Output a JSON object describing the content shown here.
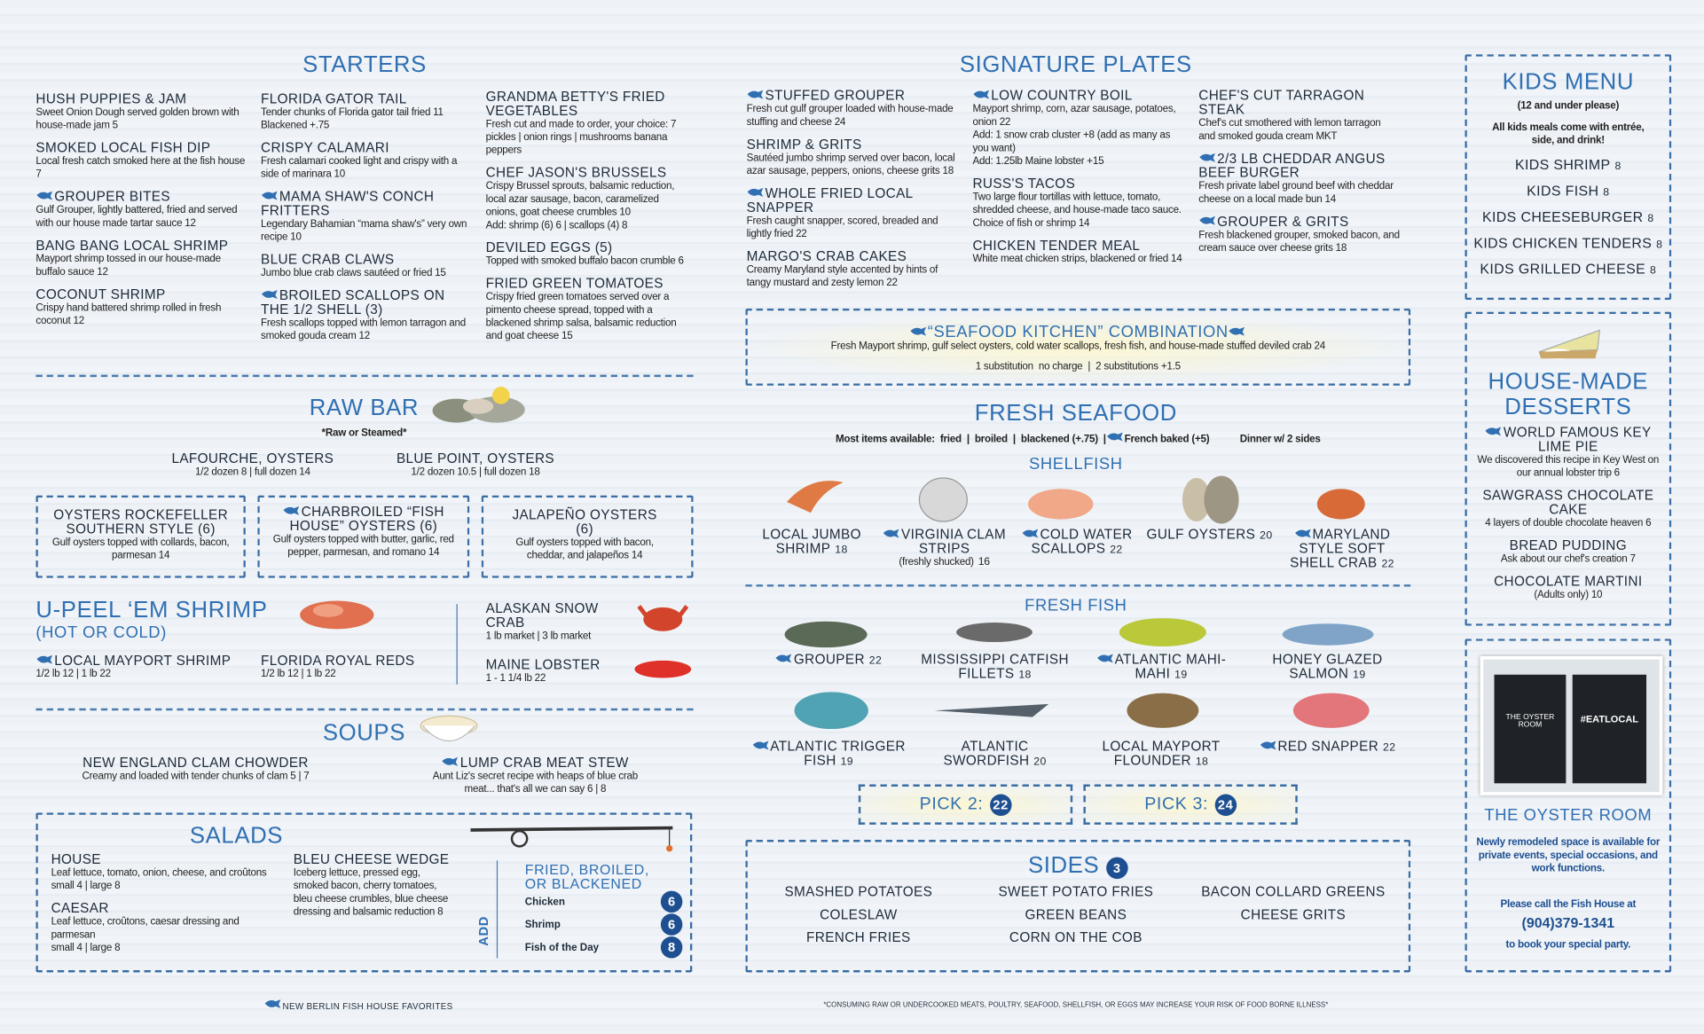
{
  "starters": {
    "title": "STARTERS",
    "columns": [
      [
        {
          "name": "HUSH PUPPIES & JAM",
          "desc": "Sweet Onion Dough served golden brown with house-made jam 5"
        },
        {
          "name": "SMOKED LOCAL FISH DIP",
          "desc": "Local fresh catch smoked here at the fish house 7"
        },
        {
          "name": "GROUPER BITES",
          "favorite": true,
          "desc": "Gulf Grouper, lightly battered, fried and served with our house made tartar sauce 12"
        },
        {
          "name": "BANG BANG LOCAL SHRIMP",
          "desc": "Mayport shrimp tossed in our house-made buffalo sauce 12"
        },
        {
          "name": "COCONUT SHRIMP",
          "desc": "Crispy hand battered shrimp rolled in fresh coconut 12"
        }
      ],
      [
        {
          "name": "FLORIDA GATOR TAIL",
          "desc": "Tender chunks of Florida gator tail fried 11",
          "notes": [
            "Blackened +.75"
          ]
        },
        {
          "name": "CRISPY CALAMARI",
          "desc": "Fresh calamari cooked light and crispy with a side of marinara 10"
        },
        {
          "name": "MAMA SHAW'S CONCH FRITTERS",
          "favorite": true,
          "desc": "Legendary Bahamian “mama shaw's” very own recipe 10"
        },
        {
          "name": "BLUE CRAB CLAWS",
          "desc": "Jumbo blue crab claws sautéed or fried 15"
        },
        {
          "name": "BROILED SCALLOPS ON THE 1/2 SHELL (3)",
          "favorite": true,
          "desc": "Fresh scallops topped with lemon tarragon and smoked gouda cream 12"
        }
      ],
      [
        {
          "name": "GRANDMA BETTY'S FRIED VEGETABLES",
          "desc": "Fresh cut and made to order, your choice: 7",
          "notes": [
            "pickles | onion rings | mushrooms banana peppers"
          ]
        },
        {
          "name": "CHEF JASON'S BRUSSELS",
          "desc": "Crispy Brussel sprouts, balsamic reduction, local azar sausage, bacon, caramelized onions, goat cheese crumbles 10",
          "notes": [
            "Add: shrimp (6) 6 | scallops (4) 8"
          ]
        },
        {
          "name": "DEVILED EGGS (5)",
          "desc": "Topped with smoked buffalo bacon crumble 6"
        },
        {
          "name": "FRIED GREEN TOMATOES",
          "desc": "Crispy fried green tomatoes served over a pimento cheese spread, topped with a blackened shrimp salsa, balsamic reduction and goat cheese 15"
        }
      ]
    ]
  },
  "raw_bar": {
    "title": "RAW BAR",
    "subtitle": "*Raw or Steamed*",
    "oysters": [
      {
        "name": "LAFOURCHE, OYSTERS",
        "desc": "1/2 dozen 8 | full dozen 14"
      },
      {
        "name": "BLUE POINT, OYSTERS",
        "desc": "1/2 dozen 10.5 | full dozen 18"
      }
    ],
    "specials": [
      {
        "name": "OYSTERS ROCKEFELLER SOUTHERN STYLE (6)",
        "desc": "Gulf oysters topped with collards, bacon, parmesan 14"
      },
      {
        "name": "CHARBROILED “FISH HOUSE” OYSTERS (6)",
        "favorite": true,
        "desc": "Gulf oysters topped with butter, garlic, red pepper, parmesan, and romano 14"
      },
      {
        "name": "JALAPEÑO OYSTERS (6)",
        "desc": "Gulf oysters topped with bacon, cheddar, and jalapeños 14"
      }
    ]
  },
  "u_peel": {
    "title": "U-PEEL ‘EM SHRIMP",
    "subtitle": "(HOT OR COLD)",
    "items": [
      {
        "name": "LOCAL MAYPORT SHRIMP",
        "favorite": true,
        "desc": "1/2 lb 12 | 1 lb 22"
      },
      {
        "name": "FLORIDA ROYAL REDS",
        "desc": "1/2 lb 12 | 1 lb 22"
      }
    ],
    "crab_lobster": [
      {
        "name": "ALASKAN SNOW CRAB",
        "desc": "1 lb market | 3 lb market"
      },
      {
        "name": "MAINE LOBSTER",
        "desc": "1 - 1 1/4 lb 22"
      }
    ]
  },
  "soups": {
    "title": "SOUPS",
    "items": [
      {
        "name": "NEW ENGLAND CLAM CHOWDER",
        "desc": "Creamy and loaded with tender chunks of clam 5 | 7"
      },
      {
        "name": "LUMP CRAB MEAT STEW",
        "favorite": true,
        "desc": "Aunt Liz's secret recipe with heaps of blue crab meat... that's all we can say 6 | 8"
      }
    ]
  },
  "salads": {
    "title": "SALADS",
    "columns": [
      [
        {
          "name": "HOUSE",
          "desc": "Leaf lettuce, tomato, onion, cheese, and croûtons",
          "notes": [
            "small 4 | large 8"
          ]
        },
        {
          "name": "CAESAR",
          "desc": "Leaf lettuce, croûtons, caesar dressing and parmesan",
          "notes": [
            "small 4 | large 8"
          ]
        }
      ],
      [
        {
          "name": "BLEU CHEESE WEDGE",
          "desc": "Iceberg lettuce, pressed egg, smoked bacon, cherry tomatoes, bleu cheese crumbles, blue cheese dressing and balsamic reduction 8"
        }
      ]
    ],
    "add": {
      "label": "ADD",
      "title": "FRIED, BROILED, OR BLACKENED",
      "items": [
        {
          "name": "Chicken",
          "price": 6
        },
        {
          "name": "Shrimp",
          "price": 6
        },
        {
          "name": "Fish of the Day",
          "price": 8
        }
      ]
    }
  },
  "signature": {
    "title": "SIGNATURE PLATES",
    "columns": [
      [
        {
          "name": "STUFFED GROUPER",
          "favorite": true,
          "desc": "Fresh cut gulf grouper loaded with house-made stuffing and cheese 24"
        },
        {
          "name": "SHRIMP & GRITS",
          "desc": "Sautéed jumbo shrimp served over bacon, local azar sausage, peppers, onions, cheese grits 18"
        },
        {
          "name": "WHOLE FRIED LOCAL SNAPPER",
          "favorite": true,
          "desc": "Fresh caught snapper, scored, breaded and lightly fried 22"
        },
        {
          "name": "MARGO'S CRAB CAKES",
          "desc": "Creamy Maryland style accented by hints of tangy mustard and zesty lemon 22"
        }
      ],
      [
        {
          "name": "LOW COUNTRY BOIL",
          "favorite": true,
          "desc": "Mayport shrimp, corn, azar sausage, potatoes, onion 22",
          "notes": [
            "Add: 1 snow crab cluster +8 (add as many as you want)",
            "Add: 1.25lb Maine lobster +15"
          ]
        },
        {
          "name": "RUSS'S TACOS",
          "desc": "Two large flour tortillas with lettuce, tomato, shredded cheese, and house-made taco sauce. Choice of fish or shrimp 14"
        },
        {
          "name": "CHICKEN TENDER MEAL",
          "desc": "White meat chicken strips, blackened or fried 14"
        }
      ],
      [
        {
          "name": "CHEF'S CUT TARRAGON STEAK",
          "desc": "Chef's cut smothered with lemon tarragon and smoked gouda cream MKT"
        },
        {
          "name": "2/3 LB CHEDDAR ANGUS BEEF BURGER",
          "favorite": true,
          "desc": "Fresh private label ground beef with cheddar cheese on a local made bun 14"
        },
        {
          "name": "GROUPER & GRITS",
          "favorite": true,
          "desc": "Fresh blackened grouper, smoked bacon, and cream sauce over cheese grits 18"
        }
      ]
    ]
  },
  "combination": {
    "title": "“SEAFOOD KITCHEN” COMBINATION",
    "desc": "Fresh Mayport shrimp, gulf select oysters, cold water scallops, fresh fish, and house-made stuffed deviled crab 24",
    "note": "1 substitution  no charge  |  2 substitutions +1.5"
  },
  "fresh_seafood": {
    "title": "FRESH SEAFOOD",
    "options": [
      "Most items available:  fried  |  broiled  |  blackened (+.75)  |",
      "French baked (+5)",
      "Dinner w/ 2 sides"
    ],
    "shellfish": {
      "title": "SHELLFISH",
      "items": [
        {
          "name": "LOCAL JUMBO SHRIMP",
          "price": 18
        },
        {
          "name": "VIRGINIA CLAM STRIPS",
          "favorite": true,
          "notes": [
            "(freshly shucked)"
          ],
          "price": 16
        },
        {
          "name": "COLD WATER SCALLOPS",
          "favorite": true,
          "price": 22
        },
        {
          "name": "GULF OYSTERS",
          "price": 20
        },
        {
          "name": "MARYLAND STYLE SOFT SHELL CRAB",
          "favorite": true,
          "price": 22
        }
      ]
    },
    "fresh_fish": {
      "title": "FRESH FISH",
      "items": [
        {
          "name": "GROUPER",
          "favorite": true,
          "price": 22
        },
        {
          "name": "MISSISSIPPI CATFISH FILLETS",
          "price": 18
        },
        {
          "name": "ATLANTIC MAHI-MAHI",
          "favorite": true,
          "price": 19
        },
        {
          "name": "HONEY GLAZED SALMON",
          "price": 19
        },
        {
          "name": "ATLANTIC TRIGGER FISH",
          "favorite": true,
          "price": 19
        },
        {
          "name": "ATLANTIC SWORDFISH",
          "price": 20
        },
        {
          "name": "LOCAL MAYPORT FLOUNDER",
          "price": 18
        },
        {
          "name": "RED SNAPPER",
          "favorite": true,
          "price": 22
        }
      ]
    },
    "picks": [
      {
        "label": "PICK 2:",
        "price": 22
      },
      {
        "label": "PICK 3:",
        "price": 24
      }
    ]
  },
  "sides": {
    "title": "SIDES",
    "price": 3,
    "items": [
      "SMASHED POTATOES",
      "SWEET POTATO FRIES",
      "BACON COLLARD GREENS",
      "COLESLAW",
      "GREEN BEANS",
      "CHEESE GRITS",
      "FRENCH FRIES",
      "CORN ON THE COB"
    ]
  },
  "kids": {
    "title": "KIDS MENU",
    "subtitle": "(12 and under please)",
    "note": "All kids meals come with entrée, side, and drink!",
    "items": [
      {
        "name": "KIDS SHRIMP",
        "price": 8
      },
      {
        "name": "KIDS FISH",
        "price": 8
      },
      {
        "name": "KIDS CHEESEBURGER",
        "price": 8
      },
      {
        "name": "KIDS CHICKEN TENDERS",
        "price": 8
      },
      {
        "name": "KIDS GRILLED CHEESE",
        "price": 8
      }
    ]
  },
  "desserts": {
    "title": "HOUSE-MADE DESSERTS",
    "items": [
      {
        "name": "WORLD FAMOUS KEY LIME PIE",
        "favorite": true,
        "desc": "We discovered this recipe in Key West on our annual lobster trip 6"
      },
      {
        "name": "SAWGRASS CHOCOLATE CAKE",
        "desc": "4 layers of double chocolate heaven 6"
      },
      {
        "name": "BREAD PUDDING",
        "desc": "Ask about our chef's creation 7"
      },
      {
        "name": "CHOCOLATE MARTINI",
        "desc": "(Adults only) 10"
      }
    ]
  },
  "oyster_room": {
    "sign": [
      "THE OYSTER ROOM",
      "#EATLOCAL"
    ],
    "title": "THE OYSTER ROOM",
    "desc": "Newly remodeled space is available for private events, special occasions, and work functions.",
    "call": "Please call the Fish House at",
    "phone": "(904)379-1341",
    "closing": "to book your special party."
  },
  "footer": {
    "favorites": "NEW BERLIN FISH HOUSE FAVORITES",
    "disclaimer": "*CONSUMING RAW OR UNDERCOOKED MEATS, POULTRY, SEAFOOD, SHELLFISH, OR EGGS MAY INCREASE YOUR RISK OF FOOD BORNE ILLNESS*"
  }
}
